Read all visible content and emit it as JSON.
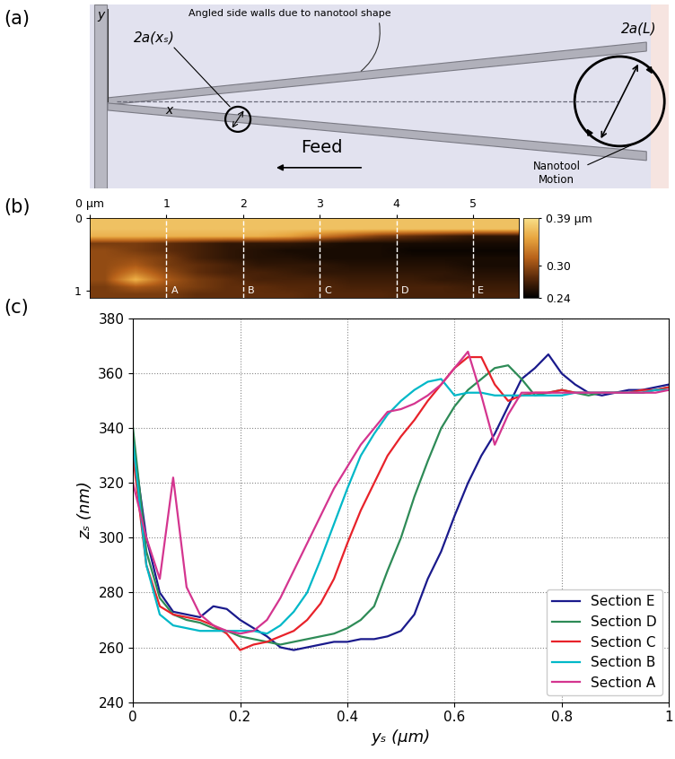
{
  "panel_labels": [
    "(a)",
    "(b)",
    "(c)"
  ],
  "diagram": {
    "texts": {
      "wall_note": "Angled side walls due to nanotool shape",
      "small_width": "2a(xₛ)",
      "large_width": "2a(L)",
      "feed": "Feed",
      "motion": "Nanotool\nMotion",
      "y_axis": "y",
      "x_axis": "x"
    }
  },
  "chart_data": [
    {
      "type": "heatmap",
      "xlim": [
        0,
        5.6
      ],
      "ylim": [
        1.1,
        0
      ],
      "xticks": [
        {
          "value": 0,
          "label": "0 µm"
        },
        1,
        2,
        3,
        4,
        5
      ],
      "yticks": [
        0,
        1
      ],
      "cells": [
        [
          0.37,
          0.37,
          0.37,
          0.37,
          0.37,
          0.37,
          0.37,
          0.37,
          0.37,
          0.37,
          0.37,
          0.37,
          0.37,
          0.37
        ],
        [
          0.37,
          0.37,
          0.37,
          0.37,
          0.37,
          0.37,
          0.37,
          0.37,
          0.37,
          0.37,
          0.37,
          0.37,
          0.37,
          0.37
        ],
        [
          0.36,
          0.36,
          0.36,
          0.36,
          0.36,
          0.36,
          0.35,
          0.33,
          0.31,
          0.29,
          0.28,
          0.27,
          0.26,
          0.26
        ],
        [
          0.29,
          0.29,
          0.28,
          0.27,
          0.26,
          0.26,
          0.26,
          0.255,
          0.25,
          0.25,
          0.25,
          0.25,
          0.25,
          0.25
        ],
        [
          0.3,
          0.29,
          0.28,
          0.27,
          0.26,
          0.255,
          0.25,
          0.25,
          0.25,
          0.25,
          0.245,
          0.245,
          0.245,
          0.245
        ],
        [
          0.3,
          0.3,
          0.29,
          0.27,
          0.26,
          0.255,
          0.255,
          0.25,
          0.25,
          0.25,
          0.25,
          0.25,
          0.25,
          0.25
        ],
        [
          0.3,
          0.31,
          0.29,
          0.28,
          0.27,
          0.26,
          0.26,
          0.26,
          0.255,
          0.255,
          0.255,
          0.255,
          0.25,
          0.25
        ],
        [
          0.3,
          0.33,
          0.3,
          0.28,
          0.27,
          0.27,
          0.265,
          0.26,
          0.26,
          0.26,
          0.26,
          0.26,
          0.255,
          0.255
        ],
        [
          0.3,
          0.36,
          0.31,
          0.29,
          0.28,
          0.27,
          0.27,
          0.27,
          0.265,
          0.265,
          0.265,
          0.26,
          0.26,
          0.26
        ],
        [
          0.29,
          0.31,
          0.3,
          0.29,
          0.28,
          0.28,
          0.275,
          0.275,
          0.27,
          0.27,
          0.27,
          0.27,
          0.265,
          0.265
        ],
        [
          0.29,
          0.29,
          0.29,
          0.28,
          0.28,
          0.28,
          0.28,
          0.275,
          0.275,
          0.275,
          0.27,
          0.27,
          0.27,
          0.27
        ]
      ],
      "colorbar_range": [
        0.24,
        0.39
      ],
      "colorbar_ticks": [
        {
          "value": 0.39,
          "label": "0.39 µm"
        },
        {
          "value": 0.3,
          "label": "0.30"
        },
        0.24
      ],
      "sections": {
        "x": [
          1,
          2,
          3,
          4,
          5
        ],
        "labels": [
          "A",
          "B",
          "C",
          "D",
          "E"
        ],
        "color": "#ffffff",
        "line_style": "dashed"
      }
    },
    {
      "type": "line",
      "x_label": "yₛ (µm)",
      "y_label": "zₛ (nm)",
      "xlim": [
        0,
        1
      ],
      "ylim": [
        240,
        380
      ],
      "xticks": [
        0,
        0.2,
        0.4,
        0.6,
        0.8,
        1
      ],
      "yticks": [
        240,
        260,
        280,
        300,
        320,
        340,
        360,
        380
      ],
      "grid": true,
      "legend": "lower right",
      "x": [
        0,
        0.025,
        0.05,
        0.075,
        0.1,
        0.125,
        0.15,
        0.175,
        0.2,
        0.225,
        0.25,
        0.275,
        0.3,
        0.325,
        0.35,
        0.375,
        0.4,
        0.425,
        0.45,
        0.475,
        0.5,
        0.525,
        0.55,
        0.575,
        0.6,
        0.625,
        0.65,
        0.675,
        0.7,
        0.725,
        0.75,
        0.775,
        0.8,
        0.825,
        0.85,
        0.875,
        0.9,
        0.925,
        0.95,
        0.975,
        1
      ],
      "series": [
        {
          "name": "Section E",
          "color": "#1a1a8c",
          "values": [
            335,
            300,
            280,
            273,
            272,
            271,
            275,
            274,
            270,
            267,
            264,
            260,
            259,
            260,
            261,
            262,
            262,
            263,
            263,
            264,
            266,
            272,
            285,
            295,
            308,
            320,
            330,
            338,
            348,
            358,
            362,
            367,
            360,
            356,
            353,
            352,
            353,
            354,
            354,
            355,
            356
          ]
        },
        {
          "name": "Section D",
          "color": "#2e8b57",
          "values": [
            340,
            295,
            278,
            272,
            270,
            269,
            267,
            266,
            264,
            263,
            262,
            261,
            262,
            263,
            264,
            265,
            267,
            270,
            275,
            288,
            300,
            315,
            328,
            340,
            348,
            354,
            358,
            362,
            363,
            358,
            352,
            353,
            354,
            353,
            352,
            353,
            353,
            353,
            353,
            354,
            355
          ]
        },
        {
          "name": "Section C",
          "color": "#e8222a",
          "values": [
            330,
            290,
            275,
            272,
            271,
            270,
            268,
            265,
            259,
            261,
            262,
            264,
            266,
            270,
            276,
            285,
            298,
            310,
            320,
            330,
            337,
            343,
            350,
            356,
            362,
            366,
            366,
            356,
            350,
            352,
            353,
            353,
            354,
            353,
            353,
            353,
            353,
            353,
            354,
            354,
            355
          ]
        },
        {
          "name": "Section B",
          "color": "#00b8c8",
          "values": [
            335,
            290,
            272,
            268,
            267,
            266,
            266,
            266,
            266,
            266,
            265,
            268,
            273,
            280,
            292,
            305,
            318,
            330,
            338,
            345,
            350,
            354,
            357,
            358,
            352,
            353,
            353,
            352,
            352,
            352,
            352,
            352,
            352,
            353,
            353,
            353,
            353,
            353,
            353,
            354,
            354
          ]
        },
        {
          "name": "Section A",
          "color": "#d4358f",
          "values": [
            320,
            300,
            285,
            322,
            282,
            272,
            268,
            266,
            265,
            266,
            270,
            278,
            288,
            298,
            308,
            318,
            326,
            334,
            340,
            346,
            347,
            349,
            352,
            356,
            362,
            368,
            352,
            334,
            345,
            353,
            353,
            353,
            353,
            353,
            353,
            353,
            353,
            353,
            353,
            353,
            354
          ]
        }
      ]
    }
  ]
}
